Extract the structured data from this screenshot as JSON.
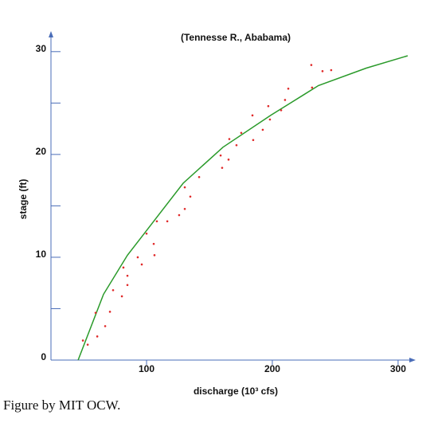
{
  "chart_data": {
    "type": "scatter",
    "title": "(Tennesse R., Ababama)",
    "xlabel": "discharge (10³ cfs)",
    "ylabel": "stage (ft)",
    "x": [
      49.4,
      53.2,
      59.5,
      60.8,
      67.1,
      70.9,
      73.4,
      80.4,
      81.6,
      84.8,
      84.8,
      93.0,
      96.2,
      100.0,
      105.7,
      106.3,
      108.2,
      116.5,
      125.9,
      130.4,
      130.4,
      134.8,
      141.8,
      158.9,
      160.1,
      165.2,
      165.8,
      171.5,
      175.3,
      184.2,
      184.8,
      192.4,
      196.8,
      198.1,
      207.0,
      210.1,
      212.7,
      231.0,
      231.6,
      239.9,
      246.8
    ],
    "y": [
      1.9,
      1.5,
      4.6,
      2.3,
      3.3,
      4.7,
      6.8,
      6.2,
      9.0,
      7.3,
      8.2,
      10.0,
      9.3,
      12.3,
      11.3,
      10.2,
      13.5,
      13.5,
      14.1,
      14.7,
      16.8,
      15.9,
      17.8,
      19.9,
      18.7,
      19.5,
      21.5,
      20.9,
      22.1,
      23.8,
      21.4,
      22.4,
      24.7,
      23.4,
      24.3,
      25.3,
      26.4,
      28.7,
      26.5,
      28.1,
      28.2
    ],
    "color": "#e02a2a",
    "fit": {
      "color": "#2a9a2a",
      "x": [
        45.6,
        65.8,
        84.8,
        100.0,
        129.1,
        160.8,
        198.7,
        236.7,
        274.7,
        307.6
      ],
      "y": [
        0,
        6.4,
        10.2,
        12.6,
        17.2,
        20.7,
        23.8,
        26.7,
        28.4,
        29.6
      ]
    },
    "axis_color": "#4a6db8",
    "xlim": [
      24,
      314
    ],
    "ylim": [
      0,
      32
    ],
    "xticks": [
      100,
      200,
      300
    ],
    "yticks": [
      0,
      10,
      20,
      30
    ],
    "y_minor_ticks": [
      5,
      15,
      25
    ]
  },
  "caption": "Figure by MIT OCW."
}
